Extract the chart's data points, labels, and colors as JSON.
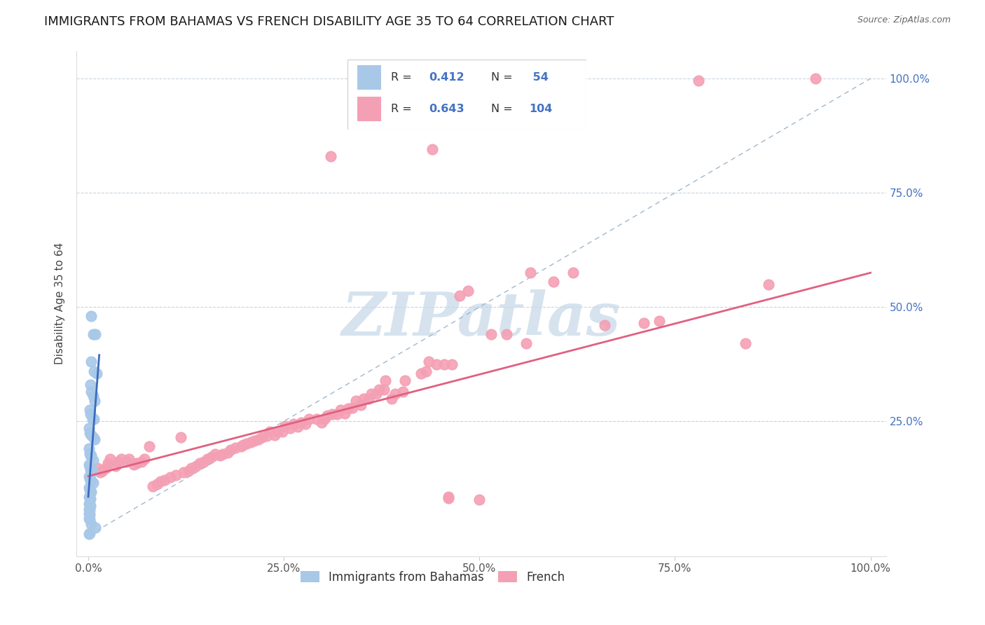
{
  "title": "IMMIGRANTS FROM BAHAMAS VS FRENCH DISABILITY AGE 35 TO 64 CORRELATION CHART",
  "source": "Source: ZipAtlas.com",
  "ylabel": "Disability Age 35 to 64",
  "x_tick_labels": [
    "0.0%",
    "25.0%",
    "50.0%",
    "75.0%",
    "100.0%"
  ],
  "x_tick_values": [
    0,
    0.25,
    0.5,
    0.75,
    1.0
  ],
  "y_tick_labels": [
    "100.0%",
    "75.0%",
    "50.0%",
    "25.0%"
  ],
  "y_tick_values": [
    1.0,
    0.75,
    0.5,
    0.25
  ],
  "bahamas_R": "0.412",
  "bahamas_N": " 54",
  "french_R": "0.643",
  "french_N": "104",
  "legend_labels": [
    "Immigrants from Bahamas",
    "French"
  ],
  "bahamas_color": "#a8c8e8",
  "french_color": "#f4a0b4",
  "bahamas_line_color": "#3a6bbf",
  "french_line_color": "#e06080",
  "trendline_dash_color": "#a0b8cc",
  "watermark_text": "ZIPatlas",
  "watermark_color": "#c5d8e8",
  "title_fontsize": 13,
  "label_fontsize": 11,
  "tick_fontsize": 11,
  "right_tick_color": "#4472c4",
  "legend_value_color": "#4472c4",
  "french_value_color": "#e05575",
  "bahamas_scatter": [
    [
      0.004,
      0.48
    ],
    [
      0.006,
      0.44
    ],
    [
      0.009,
      0.44
    ],
    [
      0.004,
      0.38
    ],
    [
      0.007,
      0.36
    ],
    [
      0.011,
      0.355
    ],
    [
      0.003,
      0.33
    ],
    [
      0.004,
      0.315
    ],
    [
      0.006,
      0.305
    ],
    [
      0.008,
      0.295
    ],
    [
      0.002,
      0.275
    ],
    [
      0.003,
      0.265
    ],
    [
      0.005,
      0.255
    ],
    [
      0.007,
      0.255
    ],
    [
      0.001,
      0.235
    ],
    [
      0.002,
      0.225
    ],
    [
      0.004,
      0.22
    ],
    [
      0.006,
      0.215
    ],
    [
      0.008,
      0.21
    ],
    [
      0.001,
      0.19
    ],
    [
      0.002,
      0.18
    ],
    [
      0.003,
      0.175
    ],
    [
      0.004,
      0.175
    ],
    [
      0.006,
      0.165
    ],
    [
      0.001,
      0.155
    ],
    [
      0.002,
      0.15
    ],
    [
      0.003,
      0.145
    ],
    [
      0.004,
      0.145
    ],
    [
      0.005,
      0.14
    ],
    [
      0.001,
      0.13
    ],
    [
      0.002,
      0.125
    ],
    [
      0.003,
      0.12
    ],
    [
      0.004,
      0.12
    ],
    [
      0.006,
      0.115
    ],
    [
      0.001,
      0.105
    ],
    [
      0.002,
      0.1
    ],
    [
      0.003,
      0.095
    ],
    [
      0.004,
      0.095
    ],
    [
      0.001,
      0.085
    ],
    [
      0.002,
      0.082
    ],
    [
      0.003,
      0.08
    ],
    [
      0.001,
      0.07
    ],
    [
      0.002,
      0.068
    ],
    [
      0.003,
      0.065
    ],
    [
      0.001,
      0.058
    ],
    [
      0.002,
      0.055
    ],
    [
      0.001,
      0.048
    ],
    [
      0.002,
      0.046
    ],
    [
      0.001,
      0.038
    ],
    [
      0.002,
      0.036
    ],
    [
      0.004,
      0.025
    ],
    [
      0.009,
      0.018
    ],
    [
      0.002,
      0.005
    ],
    [
      0.001,
      0.004
    ]
  ],
  "french_scatter": [
    [
      0.93,
      1.0
    ],
    [
      0.78,
      0.995
    ],
    [
      0.87,
      0.55
    ],
    [
      0.84,
      0.42
    ],
    [
      0.73,
      0.47
    ],
    [
      0.71,
      0.465
    ],
    [
      0.66,
      0.46
    ],
    [
      0.62,
      0.575
    ],
    [
      0.595,
      0.555
    ],
    [
      0.565,
      0.575
    ],
    [
      0.56,
      0.42
    ],
    [
      0.535,
      0.44
    ],
    [
      0.515,
      0.44
    ],
    [
      0.485,
      0.535
    ],
    [
      0.475,
      0.525
    ],
    [
      0.465,
      0.375
    ],
    [
      0.455,
      0.375
    ],
    [
      0.445,
      0.375
    ],
    [
      0.435,
      0.38
    ],
    [
      0.432,
      0.36
    ],
    [
      0.425,
      0.355
    ],
    [
      0.405,
      0.34
    ],
    [
      0.402,
      0.315
    ],
    [
      0.392,
      0.31
    ],
    [
      0.388,
      0.3
    ],
    [
      0.38,
      0.34
    ],
    [
      0.378,
      0.32
    ],
    [
      0.372,
      0.32
    ],
    [
      0.368,
      0.31
    ],
    [
      0.362,
      0.31
    ],
    [
      0.358,
      0.3
    ],
    [
      0.352,
      0.3
    ],
    [
      0.348,
      0.285
    ],
    [
      0.342,
      0.295
    ],
    [
      0.338,
      0.28
    ],
    [
      0.332,
      0.278
    ],
    [
      0.328,
      0.268
    ],
    [
      0.322,
      0.275
    ],
    [
      0.318,
      0.265
    ],
    [
      0.312,
      0.265
    ],
    [
      0.305,
      0.262
    ],
    [
      0.302,
      0.255
    ],
    [
      0.298,
      0.248
    ],
    [
      0.292,
      0.255
    ],
    [
      0.282,
      0.255
    ],
    [
      0.278,
      0.245
    ],
    [
      0.272,
      0.248
    ],
    [
      0.268,
      0.238
    ],
    [
      0.262,
      0.245
    ],
    [
      0.258,
      0.235
    ],
    [
      0.252,
      0.24
    ],
    [
      0.248,
      0.228
    ],
    [
      0.242,
      0.228
    ],
    [
      0.238,
      0.22
    ],
    [
      0.232,
      0.228
    ],
    [
      0.228,
      0.218
    ],
    [
      0.222,
      0.215
    ],
    [
      0.218,
      0.21
    ],
    [
      0.212,
      0.208
    ],
    [
      0.208,
      0.205
    ],
    [
      0.202,
      0.202
    ],
    [
      0.198,
      0.198
    ],
    [
      0.195,
      0.195
    ],
    [
      0.188,
      0.192
    ],
    [
      0.182,
      0.188
    ],
    [
      0.178,
      0.182
    ],
    [
      0.172,
      0.178
    ],
    [
      0.168,
      0.175
    ],
    [
      0.162,
      0.178
    ],
    [
      0.158,
      0.172
    ],
    [
      0.152,
      0.168
    ],
    [
      0.148,
      0.162
    ],
    [
      0.142,
      0.158
    ],
    [
      0.138,
      0.152
    ],
    [
      0.132,
      0.148
    ],
    [
      0.128,
      0.142
    ],
    [
      0.122,
      0.138
    ],
    [
      0.118,
      0.215
    ],
    [
      0.112,
      0.132
    ],
    [
      0.105,
      0.128
    ],
    [
      0.098,
      0.122
    ],
    [
      0.092,
      0.118
    ],
    [
      0.088,
      0.112
    ],
    [
      0.082,
      0.108
    ],
    [
      0.078,
      0.195
    ],
    [
      0.072,
      0.168
    ],
    [
      0.068,
      0.162
    ],
    [
      0.062,
      0.158
    ],
    [
      0.058,
      0.155
    ],
    [
      0.052,
      0.168
    ],
    [
      0.048,
      0.162
    ],
    [
      0.042,
      0.168
    ],
    [
      0.038,
      0.162
    ],
    [
      0.035,
      0.152
    ],
    [
      0.028,
      0.168
    ],
    [
      0.025,
      0.158
    ],
    [
      0.022,
      0.148
    ],
    [
      0.018,
      0.142
    ],
    [
      0.015,
      0.138
    ],
    [
      0.012,
      0.148
    ],
    [
      0.5,
      0.078
    ],
    [
      0.46,
      0.085
    ],
    [
      0.46,
      0.082
    ],
    [
      0.44,
      0.845
    ],
    [
      0.31,
      0.83
    ]
  ],
  "xlim": [
    -0.015,
    1.02
  ],
  "ylim": [
    -0.045,
    1.06
  ],
  "french_line_x": [
    0.0,
    1.0
  ],
  "french_line_y": [
    0.13,
    0.575
  ],
  "bahamas_line_x": [
    0.0,
    0.014
  ],
  "bahamas_line_y": [
    0.085,
    0.395
  ],
  "dash_line_x": [
    0.0,
    1.0
  ],
  "dash_line_y": [
    0.0,
    1.0
  ],
  "figsize": [
    14.06,
    8.92
  ],
  "dpi": 100
}
